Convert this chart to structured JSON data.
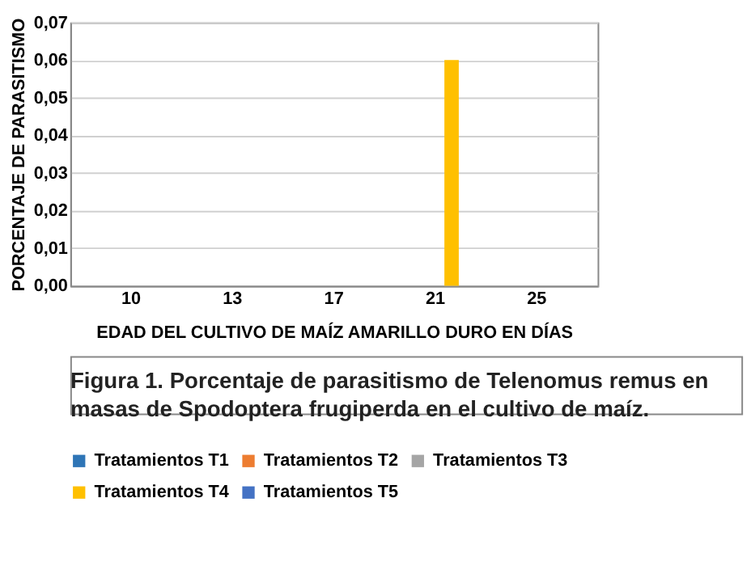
{
  "chart_data": {
    "type": "bar",
    "xlabel": "EDAD DEL CULTIVO DE MAÍZ AMARILLO DURO EN DÍAS",
    "ylabel": "PORCENTAJE DE PARASITISMO",
    "categories": [
      "10",
      "13",
      "17",
      "21",
      "25"
    ],
    "series": [
      {
        "name": "Tratamientos T1",
        "color": "#2e75b6",
        "values": [
          0,
          0,
          0,
          0,
          0
        ]
      },
      {
        "name": "Tratamientos T2",
        "color": "#ed7d31",
        "values": [
          0,
          0,
          0,
          0,
          0
        ]
      },
      {
        "name": "Tratamientos T3",
        "color": "#a5a5a5",
        "values": [
          0,
          0,
          0,
          0,
          0
        ]
      },
      {
        "name": "Tratamientos T4",
        "color": "#ffc000",
        "values": [
          0,
          0,
          0,
          0.06,
          0
        ]
      },
      {
        "name": "Tratamientos T5",
        "color": "#4472c4",
        "values": [
          0,
          0,
          0,
          0,
          0
        ]
      }
    ],
    "ylim": [
      0,
      0.07
    ],
    "yticks": [
      {
        "value": 0,
        "label": "0,00"
      },
      {
        "value": 0.01,
        "label": "0,01"
      },
      {
        "value": 0.02,
        "label": "0,02"
      },
      {
        "value": 0.03,
        "label": "0,03"
      },
      {
        "value": 0.04,
        "label": "0,04"
      },
      {
        "value": 0.05,
        "label": "0,05"
      },
      {
        "value": 0.06,
        "label": "0,06"
      },
      {
        "value": 0.07,
        "label": "0,07"
      }
    ],
    "grid": "y",
    "legend": "bottom",
    "annotations": [
      "Figura 1. Porcentaje de parasitismo de Telenomus remus en masas de Spodoptera frugiperda en el cultivo de maíz."
    ]
  }
}
